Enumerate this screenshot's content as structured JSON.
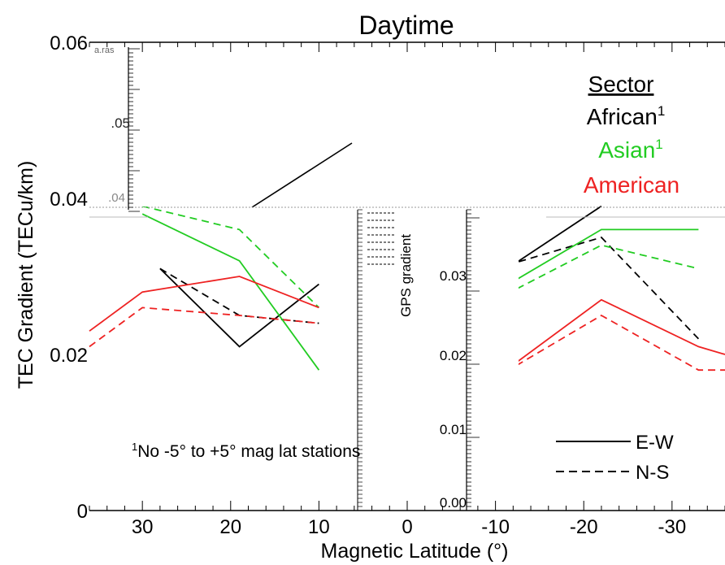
{
  "chart_data": {
    "type": "line",
    "title": "Daytime",
    "xlabel": "Magnetic Latitude (°)",
    "ylabel": "TEC Gradient (TECu/km)",
    "xlim": [
      36,
      -36
    ],
    "ylim": [
      0,
      0.06
    ],
    "x_ticks": [
      {
        "value": 30,
        "label": "30"
      },
      {
        "value": 20,
        "label": "20"
      },
      {
        "value": 10,
        "label": "10"
      },
      {
        "value": 0,
        "label": "0"
      },
      {
        "value": -10,
        "label": "-10"
      },
      {
        "value": -20,
        "label": "-20"
      },
      {
        "value": -30,
        "label": "-30"
      }
    ],
    "y_ticks": [
      {
        "value": 0,
        "label": "0"
      },
      {
        "value": 0.02,
        "label": "0.02"
      },
      {
        "value": 0.04,
        "label": "0.04"
      },
      {
        "value": 0.06,
        "label": "0.06"
      }
    ],
    "legend_sector": {
      "title": "Sector",
      "entries": [
        {
          "label": "African",
          "sup": "1",
          "color": "#000000"
        },
        {
          "label": "Asian",
          "sup": "1",
          "color": "#22cc22"
        },
        {
          "label": "American",
          "sup": "",
          "color": "#ee2222"
        }
      ]
    },
    "legend_direction": [
      {
        "label": "E-W",
        "dash": "solid"
      },
      {
        "label": "N-S",
        "dash": "dashed"
      }
    ],
    "footnote": {
      "sup": "1",
      "text": "No -5° to +5° mag lat stations"
    },
    "series": [
      {
        "name": "African E-W",
        "color": "#000000",
        "dash": "solid",
        "segments": [
          [
            [
              28,
              0.031
            ],
            [
              19,
              0.021
            ],
            [
              10,
              0.029
            ]
          ],
          [
            [
              -10,
              0.03
            ],
            [
              -22,
              0.039
            ]
          ]
        ]
      },
      {
        "name": "African N-S",
        "color": "#000000",
        "dash": "dashed",
        "segments": [
          [
            [
              28,
              0.031
            ],
            [
              19,
              0.025
            ],
            [
              10,
              0.024
            ]
          ],
          [
            [
              -10,
              0.031
            ],
            [
              -22,
              0.035
            ],
            [
              -33,
              0.022
            ]
          ]
        ]
      },
      {
        "name": "Asian E-W",
        "color": "#22cc22",
        "dash": "solid",
        "segments": [
          [
            [
              30,
              0.038
            ],
            [
              19,
              0.032
            ],
            [
              10,
              0.018
            ]
          ],
          [
            [
              -10,
              0.028
            ],
            [
              -22,
              0.036
            ],
            [
              -33,
              0.036
            ]
          ]
        ]
      },
      {
        "name": "Asian N-S",
        "color": "#22cc22",
        "dash": "dashed",
        "segments": [
          [
            [
              30,
              0.039
            ],
            [
              19,
              0.036
            ],
            [
              10,
              0.026
            ]
          ],
          [
            [
              -10,
              0.027
            ],
            [
              -22,
              0.034
            ],
            [
              -33,
              0.031
            ]
          ]
        ]
      },
      {
        "name": "American E-W",
        "color": "#ee2222",
        "dash": "solid",
        "segments": [
          [
            [
              36,
              0.023
            ],
            [
              30,
              0.028
            ],
            [
              19,
              0.03
            ],
            [
              10,
              0.026
            ]
          ],
          [
            [
              -10,
              0.017
            ],
            [
              -22,
              0.027
            ],
            [
              -33,
              0.021
            ],
            [
              -36,
              0.02
            ]
          ]
        ]
      },
      {
        "name": "American N-S",
        "color": "#ee2222",
        "dash": "dashed",
        "segments": [
          [
            [
              36,
              0.021
            ],
            [
              30,
              0.026
            ],
            [
              19,
              0.025
            ],
            [
              10,
              0.024
            ]
          ],
          [
            [
              -10,
              0.017
            ],
            [
              -22,
              0.025
            ],
            [
              -33,
              0.018
            ],
            [
              -36,
              0.018
            ]
          ]
        ]
      }
    ],
    "grid": false
  },
  "overlay": {
    "panel_label": "GPS gradient",
    "ticks": [
      "0.00",
      "0.01",
      "0.02",
      "0.03"
    ],
    "inset_ticks": [
      ".05",
      ".04"
    ],
    "inset_corner_text": "a.ras"
  }
}
